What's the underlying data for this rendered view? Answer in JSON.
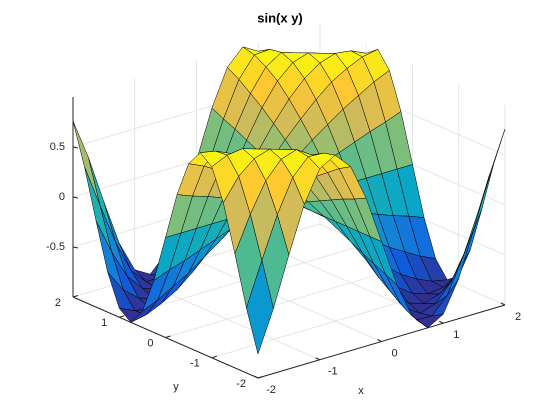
{
  "chart_data": {
    "type": "surface",
    "title": "sin(x y)",
    "x_label": "x",
    "y_label": "y",
    "x": [
      -2,
      -1.75,
      -1.5,
      -1.25,
      -1,
      -0.75,
      -0.5,
      -0.25,
      0,
      0.25,
      0.5,
      0.75,
      1,
      1.25,
      1.5,
      1.75,
      2
    ],
    "y": [
      -2,
      -1.75,
      -1.5,
      -1.25,
      -1,
      -0.75,
      -0.5,
      -0.25,
      0,
      0.25,
      0.5,
      0.75,
      1,
      1.25,
      1.5,
      1.75,
      2
    ],
    "z": [
      [
        -0.76,
        -0.35,
        0.14,
        0.6,
        0.91,
        1,
        0.84,
        0.48,
        0,
        -0.48,
        -0.84,
        -1,
        -0.91,
        -0.6,
        -0.14,
        0.35,
        0.76
      ],
      [
        -0.35,
        0.08,
        0.49,
        0.82,
        0.98,
        0.97,
        0.77,
        0.42,
        0,
        -0.42,
        -0.77,
        -0.97,
        -0.98,
        -0.82,
        -0.49,
        -0.08,
        0.35
      ],
      [
        0.14,
        0.49,
        0.78,
        0.95,
        1,
        0.9,
        0.68,
        0.37,
        0,
        -0.37,
        -0.68,
        -0.9,
        -1,
        -0.95,
        -0.78,
        -0.49,
        -0.14
      ],
      [
        0.6,
        0.82,
        0.95,
        1,
        0.95,
        0.81,
        0.59,
        0.31,
        0,
        -0.31,
        -0.59,
        -0.81,
        -0.95,
        -1,
        -0.95,
        -0.82,
        -0.6
      ],
      [
        0.91,
        0.98,
        1,
        0.95,
        0.84,
        0.68,
        0.48,
        0.25,
        0,
        -0.25,
        -0.48,
        -0.68,
        -0.84,
        -0.95,
        -1,
        -0.98,
        -0.91
      ],
      [
        1,
        0.97,
        0.9,
        0.81,
        0.68,
        0.53,
        0.37,
        0.19,
        0,
        -0.19,
        -0.37,
        -0.53,
        -0.68,
        -0.81,
        -0.9,
        -0.97,
        -1
      ],
      [
        0.84,
        0.77,
        0.68,
        0.59,
        0.48,
        0.37,
        0.25,
        0.12,
        0,
        -0.12,
        -0.25,
        -0.37,
        -0.48,
        -0.59,
        -0.68,
        -0.77,
        -0.84
      ],
      [
        0.48,
        0.42,
        0.37,
        0.31,
        0.25,
        0.19,
        0.12,
        0.06,
        0,
        -0.06,
        -0.12,
        -0.19,
        -0.25,
        -0.31,
        -0.37,
        -0.42,
        -0.48
      ],
      [
        0,
        0,
        0,
        0,
        0,
        0,
        0,
        0,
        0,
        0,
        0,
        0,
        0,
        0,
        0,
        0,
        0
      ],
      [
        -0.48,
        -0.42,
        -0.37,
        -0.31,
        -0.25,
        -0.19,
        -0.12,
        -0.06,
        0,
        0.06,
        0.12,
        0.19,
        0.25,
        0.31,
        0.37,
        0.42,
        0.48
      ],
      [
        -0.84,
        -0.77,
        -0.68,
        -0.59,
        -0.48,
        -0.37,
        -0.25,
        -0.12,
        0,
        0.12,
        0.25,
        0.37,
        0.48,
        0.59,
        0.68,
        0.77,
        0.84
      ],
      [
        -1,
        -0.97,
        -0.9,
        -0.81,
        -0.68,
        -0.53,
        -0.37,
        -0.19,
        0,
        0.19,
        0.37,
        0.53,
        0.68,
        0.81,
        0.9,
        0.97,
        1
      ],
      [
        -0.91,
        -0.98,
        -1,
        -0.95,
        -0.84,
        -0.68,
        -0.48,
        -0.25,
        0,
        0.25,
        0.48,
        0.68,
        0.84,
        0.95,
        1,
        0.98,
        0.91
      ],
      [
        -0.6,
        -0.82,
        -0.95,
        -1,
        -0.95,
        -0.81,
        -0.59,
        -0.31,
        0,
        0.31,
        0.59,
        0.81,
        0.95,
        1,
        0.95,
        0.82,
        0.6
      ],
      [
        -0.14,
        -0.49,
        -0.78,
        -0.95,
        -1,
        -0.9,
        -0.68,
        -0.37,
        0,
        0.37,
        0.68,
        0.9,
        1,
        0.95,
        0.78,
        0.49,
        0.14
      ],
      [
        0.35,
        -0.08,
        -0.49,
        -0.82,
        -0.98,
        -0.97,
        -0.77,
        -0.42,
        0,
        0.42,
        0.77,
        0.97,
        0.98,
        0.82,
        0.49,
        0.08,
        -0.35
      ],
      [
        0.76,
        0.35,
        -0.14,
        -0.6,
        -0.91,
        -1,
        -0.84,
        -0.48,
        0,
        0.48,
        0.84,
        1,
        0.91,
        0.6,
        0.14,
        -0.35,
        -0.76
      ]
    ],
    "xlim": [
      -2,
      2
    ],
    "ylim": [
      -2,
      2
    ],
    "zlim": [
      -1,
      1
    ],
    "xticks": [
      -2,
      -1,
      0,
      1,
      2
    ],
    "yticks": [
      -2,
      -1,
      0,
      1,
      2
    ],
    "zticks": [
      -0.5,
      0,
      0.5
    ],
    "grid": true,
    "colormap": [
      "#352a87",
      "#0f5cdd",
      "#1481d6",
      "#06a4ca",
      "#2eb7a4",
      "#87bf77",
      "#d1bb59",
      "#fec832",
      "#f9fb0e"
    ]
  }
}
